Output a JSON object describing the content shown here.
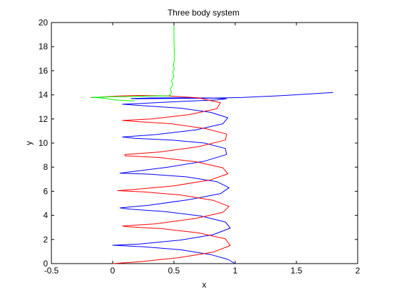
{
  "chart_data": {
    "type": "line",
    "title": "Three body system",
    "xlabel": "x",
    "ylabel": "y",
    "xlim": [
      -0.5,
      2
    ],
    "ylim": [
      0,
      20
    ],
    "xticks": [
      -0.5,
      0,
      0.5,
      1,
      1.5,
      2
    ],
    "xtick_labels": [
      "-0.5",
      "0",
      "0.5",
      "1",
      "1.5",
      "2"
    ],
    "yticks": [
      0,
      2,
      4,
      6,
      8,
      10,
      12,
      14,
      16,
      18,
      20
    ],
    "ytick_labels": [
      "0",
      "2",
      "4",
      "6",
      "8",
      "10",
      "12",
      "14",
      "16",
      "18",
      "20"
    ],
    "grid": false,
    "legend": "none",
    "series": [
      {
        "color": "#0000ff",
        "x": [
          1.0,
          0.94,
          0.8,
          0.55,
          0.25,
          0.0,
          0.22,
          0.55,
          0.82,
          0.96,
          0.92,
          0.72,
          0.42,
          0.14,
          0.06,
          0.3,
          0.62,
          0.88,
          0.95,
          0.85,
          0.6,
          0.3,
          0.06,
          0.15,
          0.45,
          0.75,
          0.93,
          0.92,
          0.75,
          0.48,
          0.18,
          0.08,
          0.35,
          0.68,
          0.9,
          0.94,
          0.8,
          0.55,
          0.25,
          0.08,
          0.25,
          0.55,
          0.85,
          0.93,
          0.8,
          0.55,
          0.3,
          0.15,
          0.2,
          0.45,
          0.75,
          1.05,
          1.4,
          1.8
        ],
        "y": [
          0.0,
          0.35,
          0.75,
          1.15,
          1.4,
          1.52,
          1.62,
          1.95,
          2.4,
          2.95,
          3.45,
          3.95,
          4.32,
          4.52,
          4.62,
          4.85,
          5.3,
          5.8,
          6.3,
          6.8,
          7.2,
          7.42,
          7.5,
          7.62,
          8.0,
          8.5,
          9.05,
          9.55,
          10.0,
          10.25,
          10.4,
          10.5,
          10.7,
          11.1,
          11.6,
          12.1,
          12.55,
          12.9,
          13.1,
          13.22,
          13.3,
          13.45,
          13.58,
          13.68,
          13.74,
          13.76,
          13.74,
          13.7,
          13.68,
          13.7,
          13.72,
          13.78,
          13.95,
          14.2
        ]
      },
      {
        "color": "#ff0000",
        "x": [
          0.0,
          0.22,
          0.55,
          0.82,
          0.96,
          0.92,
          0.7,
          0.4,
          0.12,
          0.08,
          0.35,
          0.68,
          0.9,
          0.95,
          0.82,
          0.55,
          0.25,
          0.04,
          0.18,
          0.5,
          0.8,
          0.94,
          0.9,
          0.68,
          0.38,
          0.1,
          0.1,
          0.38,
          0.7,
          0.92,
          0.93,
          0.76,
          0.48,
          0.18,
          0.08,
          0.32,
          0.62,
          0.85,
          0.88,
          0.7,
          0.45,
          0.2,
          0.05,
          -0.05,
          -0.12,
          -0.18
        ],
        "y": [
          0.0,
          0.15,
          0.5,
          0.95,
          1.5,
          2.05,
          2.55,
          2.9,
          3.05,
          3.12,
          3.3,
          3.75,
          4.25,
          4.75,
          5.25,
          5.7,
          5.95,
          6.05,
          6.15,
          6.45,
          6.95,
          7.45,
          7.95,
          8.45,
          8.8,
          8.95,
          9.05,
          9.25,
          9.7,
          10.25,
          10.75,
          11.2,
          11.6,
          11.8,
          11.88,
          12.0,
          12.35,
          12.85,
          13.35,
          13.75,
          13.92,
          13.95,
          13.9,
          13.85,
          13.8,
          13.78
        ]
      },
      {
        "color": "#00ff00",
        "x": [
          0.5,
          0.5,
          0.505,
          0.495,
          0.505,
          0.49,
          0.5,
          0.48,
          0.49,
          0.47,
          0.48,
          0.47,
          0.45,
          0.4,
          0.3,
          0.2,
          0.1,
          0.0,
          -0.08,
          -0.15,
          -0.17,
          -0.1,
          -0.05,
          -0.03,
          0.05,
          0.12,
          0.18
        ],
        "y": [
          20.0,
          18.5,
          17.0,
          16.4,
          16.2,
          15.9,
          15.5,
          15.2,
          14.8,
          14.5,
          14.2,
          14.0,
          13.9,
          13.92,
          13.9,
          13.88,
          13.86,
          13.84,
          13.82,
          13.8,
          13.78,
          13.75,
          13.7,
          13.65,
          13.55,
          13.52,
          13.5
        ]
      }
    ]
  }
}
